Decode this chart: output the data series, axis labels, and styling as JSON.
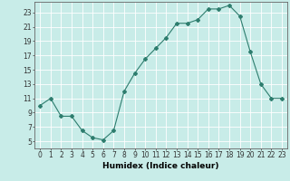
{
  "x": [
    0,
    1,
    2,
    3,
    4,
    5,
    6,
    7,
    8,
    9,
    10,
    11,
    12,
    13,
    14,
    15,
    16,
    17,
    18,
    19,
    20,
    21,
    22,
    23
  ],
  "y": [
    10,
    11,
    8.5,
    8.5,
    6.5,
    5.5,
    5.2,
    6.5,
    12,
    14.5,
    16.5,
    18,
    19.5,
    21.5,
    21.5,
    22,
    23.5,
    23.5,
    24,
    22.5,
    17.5,
    13,
    11,
    11
  ],
  "line_color": "#2e7d6e",
  "marker": "D",
  "marker_size": 2,
  "bg_color": "#c8ece8",
  "grid_color": "#ffffff",
  "xlabel": "Humidex (Indice chaleur)",
  "ylim": [
    4,
    24.5
  ],
  "xlim": [
    -0.5,
    23.5
  ],
  "yticks": [
    5,
    7,
    9,
    11,
    13,
    15,
    17,
    19,
    21,
    23
  ],
  "xticks": [
    0,
    1,
    2,
    3,
    4,
    5,
    6,
    7,
    8,
    9,
    10,
    11,
    12,
    13,
    14,
    15,
    16,
    17,
    18,
    19,
    20,
    21,
    22,
    23
  ],
  "tick_fontsize": 5.5,
  "label_fontsize": 6.5
}
